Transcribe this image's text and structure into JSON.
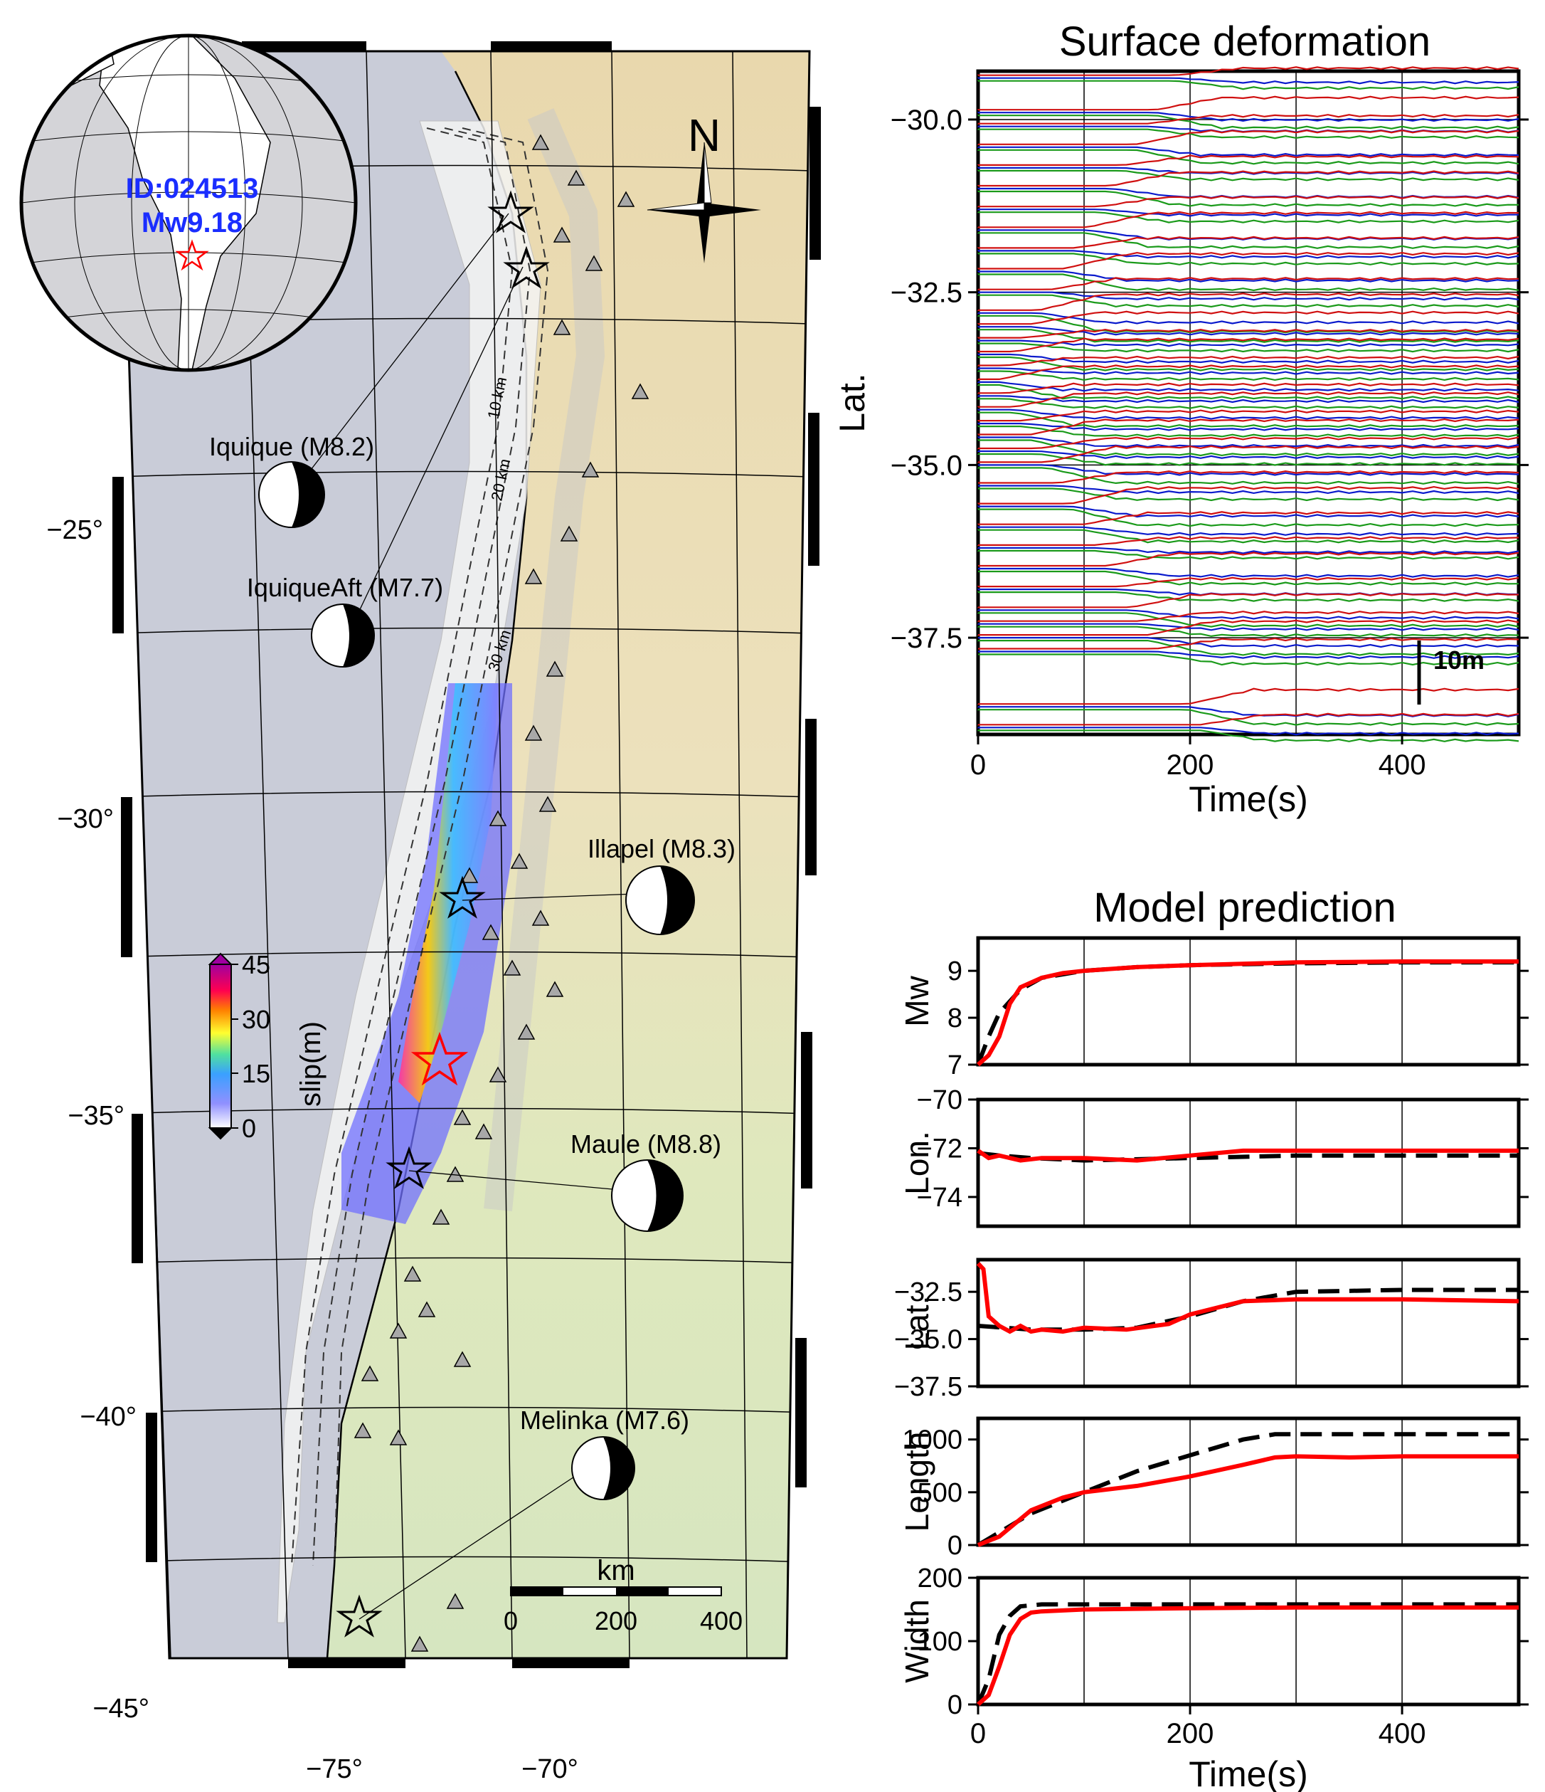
{
  "map": {
    "inset": {
      "event_id": "ID:024513",
      "magnitude": "Mw9.18"
    },
    "north_label": "N",
    "lat_ticks": [
      "−25°",
      "−30°",
      "−35°",
      "−40°",
      "−45°"
    ],
    "lon_ticks": [
      "−75°",
      "−70°"
    ],
    "contours": [
      "10 km",
      "20 km",
      "30 km"
    ],
    "colorbar": {
      "label": "slip(m)",
      "ticks": [
        "45",
        "30",
        "15",
        "0"
      ],
      "max": 45
    },
    "events": [
      {
        "name": "Iquique (M8.2)"
      },
      {
        "name": "IquiqueAft (M7.7)"
      },
      {
        "name": "Illapel (M8.3)"
      },
      {
        "name": "Maule (M8.8)"
      },
      {
        "name": "Melinka (M7.6)"
      }
    ],
    "scalebar": {
      "unit": "km",
      "ticks": [
        "0",
        "200",
        "400"
      ]
    },
    "colors": {
      "ocean": "#c9ccd8",
      "land_north": "#e8d9b0",
      "land_south": "#d9e6b8",
      "hypocenter": "#ff0000"
    }
  },
  "chart_data": [
    {
      "type": "line",
      "title": "Surface deformation",
      "xlabel": "Time(s)",
      "ylabel": "Lat.",
      "xlim": [
        0,
        510
      ],
      "ylim": [
        -38.9,
        -29.3
      ],
      "x_ticks": [
        "0",
        "200",
        "400"
      ],
      "y_ticks": [
        "−30.0",
        "−32.5",
        "−35.0",
        "−37.5"
      ],
      "scale_label": "10m",
      "series_colors": {
        "east": "#1a9a1a",
        "north": "#d01010",
        "up": "#0a1acc"
      },
      "station_latitudes": [
        -29.4,
        -29.9,
        -30.1,
        -30.4,
        -30.7,
        -31.0,
        -31.3,
        -31.6,
        -31.9,
        -32.2,
        -32.5,
        -32.8,
        -33.0,
        -33.2,
        -33.4,
        -33.6,
        -33.8,
        -34.0,
        -34.2,
        -34.4,
        -34.6,
        -34.8,
        -35.0,
        -35.3,
        -35.6,
        -35.9,
        -36.2,
        -36.5,
        -36.8,
        -37.1,
        -37.3,
        -37.5,
        -37.7,
        -38.5,
        -38.8
      ]
    },
    {
      "type": "line",
      "title": "Model prediction",
      "panels": [
        {
          "ylabel": "Mw",
          "ylim": [
            7,
            9.7
          ],
          "y_ticks": [
            "7",
            "8",
            "9"
          ],
          "series": [
            {
              "style": "dashed",
              "color": "#000000",
              "x": [
                0,
                10,
                20,
                40,
                60,
                100,
                150,
                200,
                300,
                400,
                510
              ],
              "values": [
                7.0,
                7.6,
                8.1,
                8.6,
                8.85,
                9.0,
                9.08,
                9.12,
                9.16,
                9.18,
                9.18
              ]
            },
            {
              "style": "solid",
              "color": "#ff0000",
              "x": [
                0,
                10,
                20,
                30,
                40,
                60,
                80,
                100,
                150,
                200,
                300,
                400,
                510
              ],
              "values": [
                7.0,
                7.2,
                7.6,
                8.3,
                8.65,
                8.85,
                8.95,
                9.0,
                9.08,
                9.12,
                9.18,
                9.2,
                9.2
              ]
            }
          ]
        },
        {
          "ylabel": "Lon.",
          "ylim": [
            -75.2,
            -70
          ],
          "y_ticks": [
            "−70",
            "−72",
            "−74"
          ],
          "series": [
            {
              "style": "dashed",
              "color": "#000000",
              "x": [
                0,
                20,
                50,
                100,
                200,
                300,
                400,
                510
              ],
              "values": [
                -72.2,
                -72.3,
                -72.4,
                -72.5,
                -72.4,
                -72.3,
                -72.3,
                -72.3
              ]
            },
            {
              "style": "solid",
              "color": "#ff0000",
              "x": [
                0,
                10,
                20,
                40,
                60,
                100,
                150,
                200,
                250,
                300,
                400,
                510
              ],
              "values": [
                -72.1,
                -72.4,
                -72.3,
                -72.5,
                -72.4,
                -72.4,
                -72.5,
                -72.3,
                -72.1,
                -72.1,
                -72.1,
                -72.1
              ]
            }
          ]
        },
        {
          "ylabel": "Lat.",
          "ylim": [
            -37.5,
            -30.8
          ],
          "y_ticks": [
            "−32.5",
            "−35.0",
            "−37.5"
          ],
          "series": [
            {
              "style": "dashed",
              "color": "#000000",
              "x": [
                0,
                50,
                100,
                150,
                200,
                250,
                300,
                400,
                510
              ],
              "values": [
                -34.3,
                -34.5,
                -34.5,
                -34.4,
                -33.8,
                -33.0,
                -32.5,
                -32.4,
                -32.4
              ]
            },
            {
              "style": "solid",
              "color": "#ff0000",
              "x": [
                0,
                5,
                10,
                20,
                30,
                40,
                50,
                60,
                80,
                100,
                140,
                180,
                200,
                250,
                300,
                400,
                510
              ],
              "values": [
                -31.0,
                -31.3,
                -33.8,
                -34.3,
                -34.6,
                -34.3,
                -34.6,
                -34.5,
                -34.6,
                -34.4,
                -34.5,
                -34.2,
                -33.7,
                -33.0,
                -32.9,
                -32.9,
                -33.0
              ]
            }
          ]
        },
        {
          "ylabel": "Length",
          "ylim": [
            0,
            1200
          ],
          "y_ticks": [
            "0",
            "500",
            "1000"
          ],
          "series": [
            {
              "style": "dashed",
              "color": "#000000",
              "x": [
                0,
                50,
                100,
                150,
                200,
                250,
                280,
                300,
                400,
                510
              ],
              "values": [
                0,
                300,
                500,
                700,
                850,
                1000,
                1050,
                1050,
                1050,
                1050
              ]
            },
            {
              "style": "solid",
              "color": "#ff0000",
              "x": [
                0,
                20,
                50,
                80,
                100,
                150,
                200,
                250,
                280,
                300,
                350,
                400,
                450,
                510
              ],
              "values": [
                0,
                80,
                330,
                450,
                500,
                560,
                650,
                760,
                830,
                840,
                830,
                840,
                840,
                840
              ]
            }
          ]
        },
        {
          "ylabel": "Width",
          "ylim": [
            0,
            200
          ],
          "y_ticks": [
            "0",
            "100",
            "200"
          ],
          "series": [
            {
              "style": "dashed",
              "color": "#000000",
              "x": [
                0,
                10,
                20,
                30,
                40,
                60,
                100,
                200,
                300,
                400,
                510
              ],
              "values": [
                0,
                40,
                110,
                140,
                155,
                158,
                158,
                158,
                158,
                158,
                158
              ]
            },
            {
              "style": "solid",
              "color": "#ff0000",
              "x": [
                0,
                10,
                20,
                30,
                40,
                50,
                60,
                100,
                200,
                300,
                400,
                510
              ],
              "values": [
                0,
                15,
                60,
                110,
                135,
                145,
                147,
                150,
                152,
                153,
                153,
                153
              ]
            }
          ]
        }
      ],
      "xlabel": "Time(s)",
      "xlim": [
        0,
        510
      ],
      "x_ticks": [
        "0",
        "200",
        "400"
      ]
    }
  ]
}
